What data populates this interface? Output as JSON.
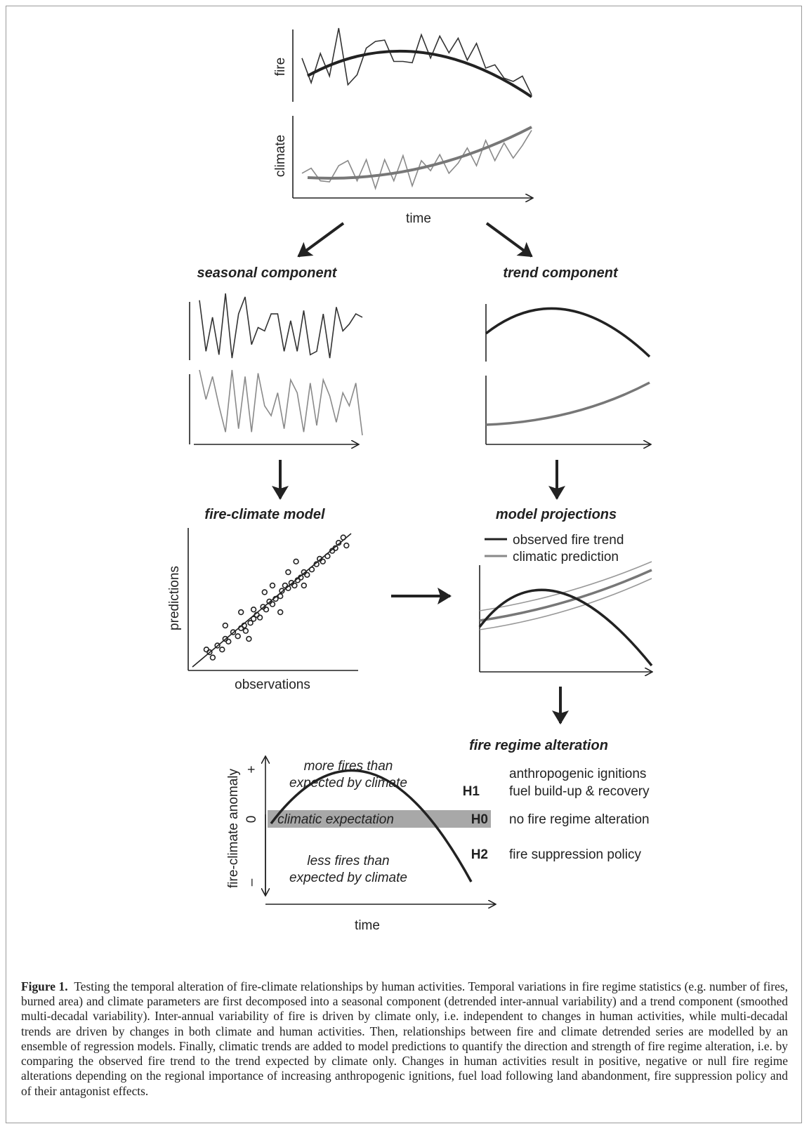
{
  "top_panel": {
    "fire_label": "fire",
    "climate_label": "climate",
    "time_label": "time",
    "fire_series": [
      0.55,
      0.18,
      0.62,
      0.28,
      1.0,
      0.15,
      0.3,
      0.7,
      0.8,
      0.82,
      0.5,
      0.5,
      0.48,
      0.9,
      0.55,
      0.88,
      0.63,
      0.85,
      0.52,
      0.77,
      0.4,
      0.45,
      0.25,
      0.2,
      0.28,
      0.0
    ],
    "climate_series": [
      0.35,
      0.45,
      0.2,
      0.18,
      0.5,
      0.6,
      0.2,
      0.62,
      0.05,
      0.62,
      0.2,
      0.7,
      0.1,
      0.6,
      0.4,
      0.72,
      0.35,
      0.55,
      0.85,
      0.5,
      1.0,
      0.6,
      0.95,
      0.65,
      0.9,
      1.2
    ]
  },
  "seasonal": {
    "title": "seasonal component",
    "fire_series": [
      0.1,
      0.85,
      0.35,
      0.9,
      0.0,
      0.95,
      0.3,
      0.05,
      0.75,
      0.5,
      0.55,
      0.3,
      0.3,
      0.85,
      0.4,
      0.85,
      0.25,
      0.9,
      0.85,
      0.3,
      0.95,
      0.2,
      0.55,
      0.45,
      0.3,
      0.35
    ],
    "climate_series": [
      0.0,
      0.45,
      0.1,
      0.55,
      0.95,
      0.0,
      0.9,
      0.1,
      0.95,
      0.05,
      0.55,
      0.7,
      0.35,
      0.9,
      0.15,
      0.35,
      0.95,
      0.2,
      0.85,
      0.15,
      0.4,
      0.8,
      0.35,
      0.55,
      0.2,
      1.0
    ]
  },
  "trend": {
    "title": "trend component"
  },
  "fire_climate_model": {
    "title": "fire-climate model",
    "ylabel": "predictions",
    "xlabel": "observations",
    "points": [
      [
        0.1,
        0.1
      ],
      [
        0.12,
        0.06
      ],
      [
        0.08,
        0.12
      ],
      [
        0.15,
        0.15
      ],
      [
        0.18,
        0.12
      ],
      [
        0.2,
        0.2
      ],
      [
        0.22,
        0.18
      ],
      [
        0.25,
        0.25
      ],
      [
        0.28,
        0.22
      ],
      [
        0.3,
        0.28
      ],
      [
        0.32,
        0.3
      ],
      [
        0.33,
        0.26
      ],
      [
        0.36,
        0.32
      ],
      [
        0.38,
        0.35
      ],
      [
        0.4,
        0.38
      ],
      [
        0.42,
        0.36
      ],
      [
        0.44,
        0.44
      ],
      [
        0.46,
        0.42
      ],
      [
        0.48,
        0.48
      ],
      [
        0.5,
        0.46
      ],
      [
        0.52,
        0.5
      ],
      [
        0.55,
        0.52
      ],
      [
        0.56,
        0.56
      ],
      [
        0.58,
        0.6
      ],
      [
        0.6,
        0.58
      ],
      [
        0.62,
        0.62
      ],
      [
        0.64,
        0.6
      ],
      [
        0.66,
        0.64
      ],
      [
        0.68,
        0.66
      ],
      [
        0.7,
        0.7
      ],
      [
        0.72,
        0.68
      ],
      [
        0.75,
        0.72
      ],
      [
        0.78,
        0.76
      ],
      [
        0.8,
        0.8
      ],
      [
        0.82,
        0.78
      ],
      [
        0.85,
        0.82
      ],
      [
        0.88,
        0.86
      ],
      [
        0.9,
        0.88
      ],
      [
        0.92,
        0.92
      ],
      [
        0.95,
        0.96
      ],
      [
        0.97,
        0.9
      ],
      [
        0.5,
        0.6
      ],
      [
        0.45,
        0.55
      ],
      [
        0.38,
        0.42
      ],
      [
        0.6,
        0.7
      ],
      [
        0.7,
        0.6
      ],
      [
        0.3,
        0.4
      ],
      [
        0.55,
        0.4
      ],
      [
        0.35,
        0.2
      ],
      [
        0.2,
        0.3
      ],
      [
        0.65,
        0.78
      ]
    ]
  },
  "model_projections": {
    "title": "model projections",
    "legend": {
      "observed": "observed fire trend",
      "climatic": "climatic prediction"
    }
  },
  "fire_regime": {
    "title": "fire regime alteration",
    "ylabel": "fire-climate anomaly",
    "xlabel": "time",
    "plus": "+",
    "zero": "0",
    "minus": "–",
    "more_fires_line1": "more fires than",
    "more_fires_line2": "expected by climate",
    "climatic_expectation": "climatic expectation",
    "less_fires_line1": "less fires than",
    "less_fires_line2": "expected by climate",
    "h1": {
      "code": "H1",
      "line1": "anthropogenic ignitions",
      "line2": "fuel build-up & recovery"
    },
    "h0": {
      "code": "H0",
      "line1": "no fire regime alteration"
    },
    "h2": {
      "code": "H2",
      "line1": "fire suppression policy"
    }
  },
  "caption": {
    "label": "Figure 1.",
    "text": "Testing the temporal alteration of fire-climate relationships by human activities. Temporal variations in fire regime statistics (e.g. number of fires, burned area) and climate parameters are first decomposed into a seasonal component (detrended inter-annual variability) and a trend component (smoothed multi-decadal variability). Inter-annual variability of fire is driven by climate only, i.e. independent to changes in human activities, while multi-decadal trends are driven by changes in both climate and human activities. Then, relationships between fire and climate detrended series are modelled by an ensemble of regression models. Finally, climatic trends are added to model predictions to quantify the direction and strength of fire regime alteration, i.e. by comparing the observed fire trend to the trend expected by climate only. Changes in human activities result in positive, negative or null fire regime alterations depending on the regional importance of increasing anthropogenic ignitions, fuel load following land abandonment, fire suppression policy and of their antagonist effects."
  }
}
